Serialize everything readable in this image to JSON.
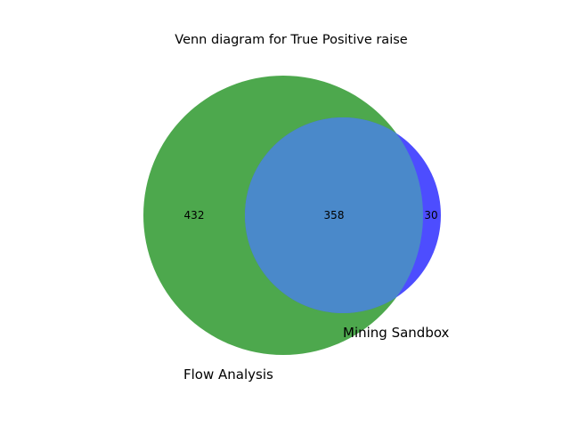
{
  "diagram": {
    "title": "Venn diagram for True Positive raise",
    "sets": [
      {
        "id": "A",
        "name": "Flow Analysis",
        "size": 790,
        "color": "#4da84d"
      },
      {
        "id": "B",
        "name": "Mining Sandbox",
        "size": 388,
        "color": "#4d4dff"
      }
    ],
    "regions": {
      "only_A": "432",
      "A_and_B": "358",
      "only_B": "30"
    },
    "overlap_color": "#4a89ca"
  }
}
